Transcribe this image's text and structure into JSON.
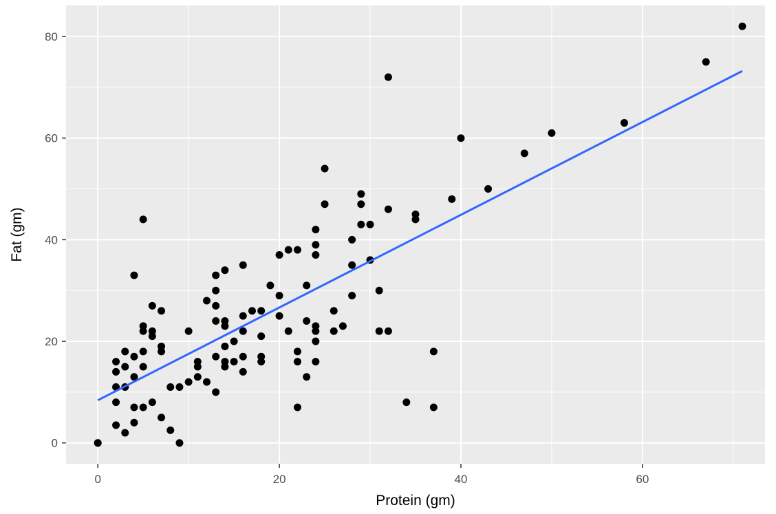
{
  "chart_data": {
    "type": "scatter",
    "xlabel": "Protein (gm)",
    "ylabel": "Fat (gm)",
    "xlim": [
      -3.5,
      73.5
    ],
    "ylim": [
      -4.1,
      86.1
    ],
    "xticks": [
      0,
      20,
      40,
      60
    ],
    "yticks": [
      0,
      20,
      40,
      60,
      80
    ],
    "grid": true,
    "colors": {
      "panel_background": "#ebebeb",
      "grid_line": "#ffffff",
      "point": "#000000",
      "fit_line": "#3366ff"
    },
    "points": [
      [
        0,
        0
      ],
      [
        0,
        0
      ],
      [
        2,
        16
      ],
      [
        2,
        14
      ],
      [
        2,
        11
      ],
      [
        2,
        8
      ],
      [
        2,
        3.5
      ],
      [
        3,
        18
      ],
      [
        3,
        15
      ],
      [
        3,
        11
      ],
      [
        3,
        2
      ],
      [
        4,
        33
      ],
      [
        4,
        17
      ],
      [
        4,
        13
      ],
      [
        4,
        7
      ],
      [
        4,
        4
      ],
      [
        5,
        44
      ],
      [
        5,
        23
      ],
      [
        5,
        22
      ],
      [
        5,
        18
      ],
      [
        5,
        15
      ],
      [
        5,
        7
      ],
      [
        6,
        27
      ],
      [
        6,
        22
      ],
      [
        6,
        21
      ],
      [
        6,
        8
      ],
      [
        7,
        26
      ],
      [
        7,
        19
      ],
      [
        7,
        18
      ],
      [
        7,
        5
      ],
      [
        8,
        11
      ],
      [
        8,
        2.5
      ],
      [
        9,
        11
      ],
      [
        9,
        0
      ],
      [
        10,
        22
      ],
      [
        10,
        12
      ],
      [
        11,
        16
      ],
      [
        11,
        15
      ],
      [
        11,
        13
      ],
      [
        12,
        28
      ],
      [
        12,
        12
      ],
      [
        13,
        33
      ],
      [
        13,
        30
      ],
      [
        13,
        27
      ],
      [
        13,
        24
      ],
      [
        13,
        17
      ],
      [
        13,
        10
      ],
      [
        14,
        34
      ],
      [
        14,
        24
      ],
      [
        14,
        23
      ],
      [
        14,
        19
      ],
      [
        14,
        16
      ],
      [
        14,
        15
      ],
      [
        15,
        20
      ],
      [
        15,
        16
      ],
      [
        16,
        35
      ],
      [
        16,
        25
      ],
      [
        16,
        22
      ],
      [
        16,
        17
      ],
      [
        16,
        14
      ],
      [
        17,
        26
      ],
      [
        18,
        26
      ],
      [
        18,
        21
      ],
      [
        18,
        17
      ],
      [
        18,
        16
      ],
      [
        19,
        31
      ],
      [
        20,
        37
      ],
      [
        20,
        29
      ],
      [
        20,
        25
      ],
      [
        21,
        38
      ],
      [
        21,
        22
      ],
      [
        22,
        38
      ],
      [
        22,
        18
      ],
      [
        22,
        16
      ],
      [
        22,
        7
      ],
      [
        23,
        31
      ],
      [
        23,
        24
      ],
      [
        23,
        13
      ],
      [
        24,
        42
      ],
      [
        24,
        39
      ],
      [
        24,
        37
      ],
      [
        24,
        23
      ],
      [
        24,
        22
      ],
      [
        24,
        20
      ],
      [
        24,
        16
      ],
      [
        25,
        54
      ],
      [
        25,
        47
      ],
      [
        26,
        26
      ],
      [
        26,
        22
      ],
      [
        27,
        23
      ],
      [
        28,
        40
      ],
      [
        28,
        35
      ],
      [
        28,
        29
      ],
      [
        29,
        49
      ],
      [
        29,
        47
      ],
      [
        29,
        43
      ],
      [
        30,
        43
      ],
      [
        30,
        36
      ],
      [
        31,
        30
      ],
      [
        31,
        22
      ],
      [
        32,
        72
      ],
      [
        32,
        46
      ],
      [
        32,
        22
      ],
      [
        34,
        8
      ],
      [
        35,
        45
      ],
      [
        35,
        44
      ],
      [
        37,
        18
      ],
      [
        37,
        7
      ],
      [
        39,
        48
      ],
      [
        40,
        60
      ],
      [
        43,
        50
      ],
      [
        47,
        57
      ],
      [
        50,
        61
      ],
      [
        58,
        63
      ],
      [
        67,
        75
      ],
      [
        71,
        82
      ]
    ],
    "fit_line": {
      "x": [
        0,
        71
      ],
      "y": [
        8.4,
        73.2
      ]
    }
  }
}
